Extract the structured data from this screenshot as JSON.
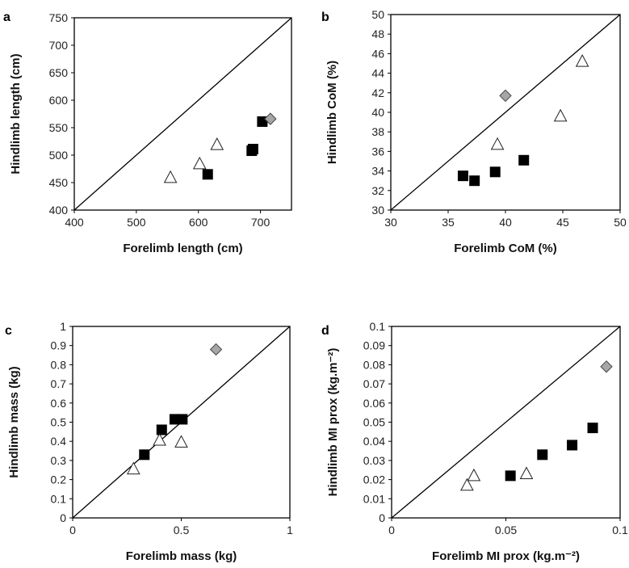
{
  "chart_data": [
    {
      "panel": "a",
      "type": "scatter",
      "xlabel": "Forelimb length (cm)",
      "ylabel": "Hindlimb length (cm)",
      "xlim": [
        400,
        750
      ],
      "ylim": [
        400,
        750
      ],
      "xticks": [
        400,
        500,
        600,
        700
      ],
      "yticks": [
        400,
        450,
        500,
        550,
        600,
        650,
        700,
        750
      ],
      "identity_line": true,
      "grid": false,
      "series": [
        {
          "marker": "square",
          "color": "#000000",
          "points": [
            [
              615,
              465
            ],
            [
              686,
              508
            ],
            [
              688,
              511
            ],
            [
              703,
              561
            ]
          ]
        },
        {
          "marker": "triangle-open",
          "color": "#ffffff",
          "points": [
            [
              555,
              459
            ],
            [
              602,
              484
            ],
            [
              630,
              519
            ]
          ]
        },
        {
          "marker": "diamond",
          "color": "#a6a6a6",
          "points": [
            [
              716,
              566
            ]
          ]
        }
      ]
    },
    {
      "panel": "b",
      "type": "scatter",
      "xlabel": "Forelimb CoM (%)",
      "ylabel": "Hindlimb CoM (%)",
      "xlim": [
        30,
        50
      ],
      "ylim": [
        30,
        50
      ],
      "xticks": [
        30,
        35,
        40,
        45,
        50
      ],
      "yticks": [
        30,
        32,
        34,
        36,
        38,
        40,
        42,
        44,
        46,
        48,
        50
      ],
      "identity_line": true,
      "grid": false,
      "series": [
        {
          "marker": "square",
          "color": "#000000",
          "points": [
            [
              36.3,
              33.5
            ],
            [
              37.3,
              33.0
            ],
            [
              39.1,
              33.9
            ],
            [
              41.6,
              35.1
            ]
          ]
        },
        {
          "marker": "triangle-open",
          "color": "#ffffff",
          "points": [
            [
              39.3,
              36.7
            ],
            [
              44.8,
              39.6
            ],
            [
              46.7,
              45.2
            ]
          ]
        },
        {
          "marker": "diamond",
          "color": "#a6a6a6",
          "points": [
            [
              40.0,
              41.7
            ]
          ]
        }
      ]
    },
    {
      "panel": "c",
      "type": "scatter",
      "xlabel": "Forelimb mass (kg)",
      "ylabel": "Hindlimb mass (kg)",
      "xlim": [
        0,
        1
      ],
      "ylim": [
        0,
        1
      ],
      "xticks": [
        "0",
        "0.5",
        "1"
      ],
      "yticks": [
        "0",
        "0.1",
        "0.2",
        "0.3",
        "0.4",
        "0.5",
        "0.6",
        "0.7",
        "0.8",
        "0.9",
        "1"
      ],
      "identity_line": true,
      "grid": false,
      "series": [
        {
          "marker": "square",
          "color": "#000000",
          "points": [
            [
              0.33,
              0.33
            ],
            [
              0.41,
              0.46
            ],
            [
              0.47,
              0.515
            ],
            [
              0.505,
              0.515
            ]
          ]
        },
        {
          "marker": "triangle-open",
          "color": "#ffffff",
          "points": [
            [
              0.28,
              0.255
            ],
            [
              0.4,
              0.405
            ],
            [
              0.5,
              0.395
            ]
          ]
        },
        {
          "marker": "diamond",
          "color": "#a6a6a6",
          "points": [
            [
              0.66,
              0.88
            ]
          ]
        }
      ]
    },
    {
      "panel": "d",
      "type": "scatter",
      "xlabel": "Forelimb MI prox (kg.m⁻²)",
      "ylabel": "Hindlimb MI prox (kg.m⁻²)",
      "xlim": [
        0,
        0.1
      ],
      "ylim": [
        0,
        0.1
      ],
      "xticks": [
        "0",
        "0.05",
        "0.1"
      ],
      "yticks": [
        "0",
        "0.01",
        "0.02",
        "0.03",
        "0.04",
        "0.05",
        "0.06",
        "0.07",
        "0.08",
        "0.09",
        "0.1"
      ],
      "identity_line": true,
      "grid": false,
      "series": [
        {
          "marker": "square",
          "color": "#000000",
          "points": [
            [
              0.052,
              0.022
            ],
            [
              0.066,
              0.033
            ],
            [
              0.079,
              0.038
            ],
            [
              0.088,
              0.047
            ]
          ]
        },
        {
          "marker": "triangle-open",
          "color": "#ffffff",
          "points": [
            [
              0.033,
              0.017
            ],
            [
              0.036,
              0.022
            ],
            [
              0.059,
              0.023
            ]
          ]
        },
        {
          "marker": "diamond",
          "color": "#a6a6a6",
          "points": [
            [
              0.094,
              0.079
            ]
          ]
        }
      ]
    }
  ]
}
